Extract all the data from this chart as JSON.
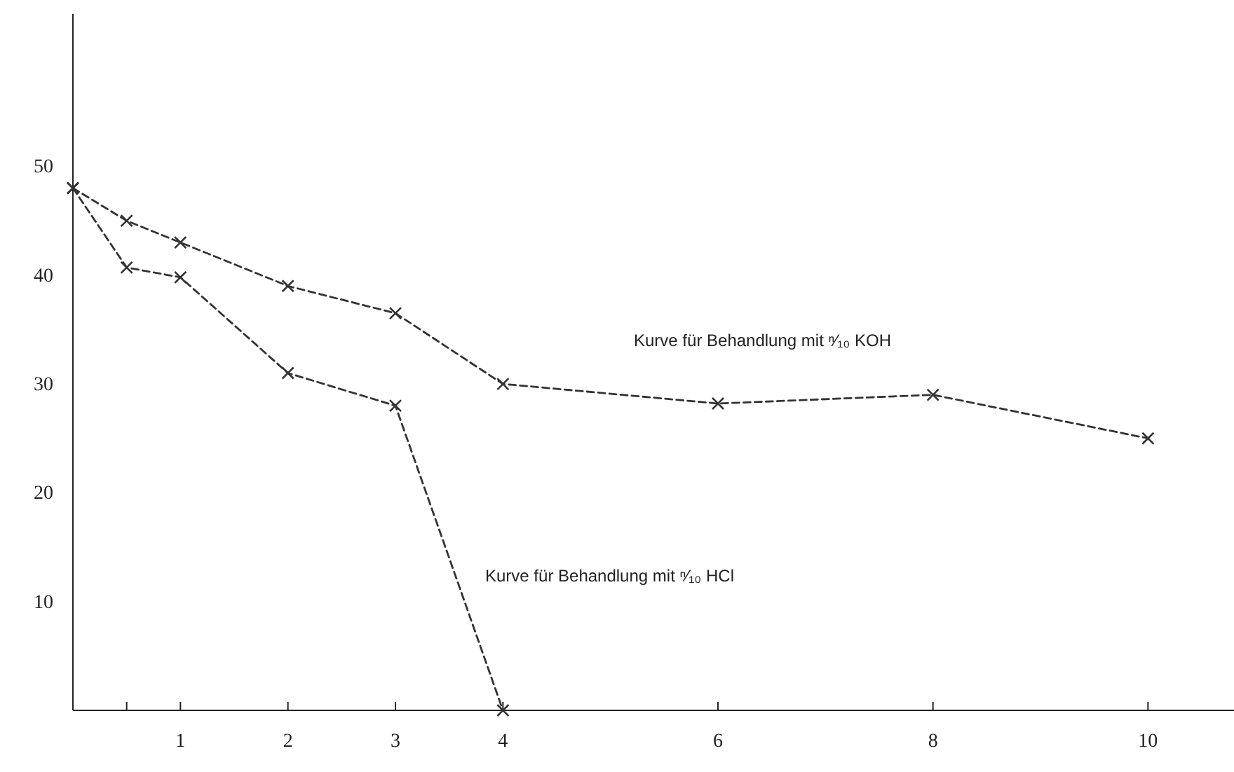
{
  "chart_data": {
    "type": "line",
    "x": [
      0,
      0.5,
      1,
      2,
      3,
      4,
      6,
      8,
      10
    ],
    "series": [
      {
        "color": "#333333",
        "values": [
          48,
          45,
          43,
          39,
          36.5,
          30,
          28.2,
          29,
          25
        ]
      },
      {
        "color": "#333333",
        "x": [
          0,
          0.5,
          1,
          2,
          3,
          4
        ],
        "values": [
          48,
          40.7,
          39.8,
          31,
          28,
          0
        ]
      }
    ],
    "xlim": [
      0,
      10.8
    ],
    "ylim": [
      0,
      64
    ],
    "xticks": [
      {
        "value": 0.5,
        "label": null
      },
      1,
      2,
      3,
      4,
      6,
      8,
      10
    ],
    "yticks": [
      10,
      20,
      30,
      40,
      50
    ],
    "marker": "cross",
    "line_style": "dashed",
    "grid": false,
    "annotations": [
      "Kurve für Behandlung mit ⁿ⁄₁₀ KOH",
      "Kurve für Behandlung mit ⁿ⁄₁₀ HCl"
    ]
  }
}
